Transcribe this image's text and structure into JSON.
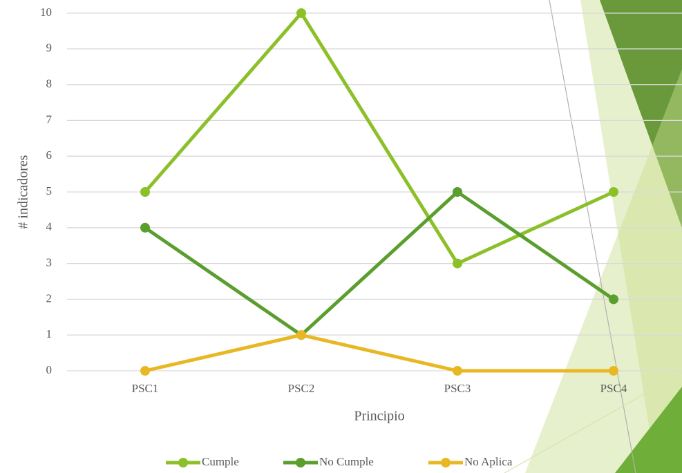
{
  "chart_data": {
    "type": "line",
    "x_label": "Principio",
    "y_label": "# indicadores",
    "categories": [
      "PSC1",
      "PSC2",
      "PSC3",
      "PSC4"
    ],
    "series": [
      {
        "name": "Cumple",
        "color": "#8cc028",
        "values": [
          5,
          10,
          3,
          5
        ]
      },
      {
        "name": "No Cumple",
        "color": "#5a9e2e",
        "values": [
          4,
          1,
          5,
          2
        ]
      },
      {
        "name": "No Aplica",
        "color": "#e8b824",
        "values": [
          0,
          1,
          0,
          0
        ]
      }
    ],
    "ylim": [
      0,
      10
    ],
    "yticks": [
      0,
      1,
      2,
      3,
      4,
      5,
      6,
      7,
      8,
      9,
      10
    ],
    "grid": true,
    "legend": "bottom"
  }
}
